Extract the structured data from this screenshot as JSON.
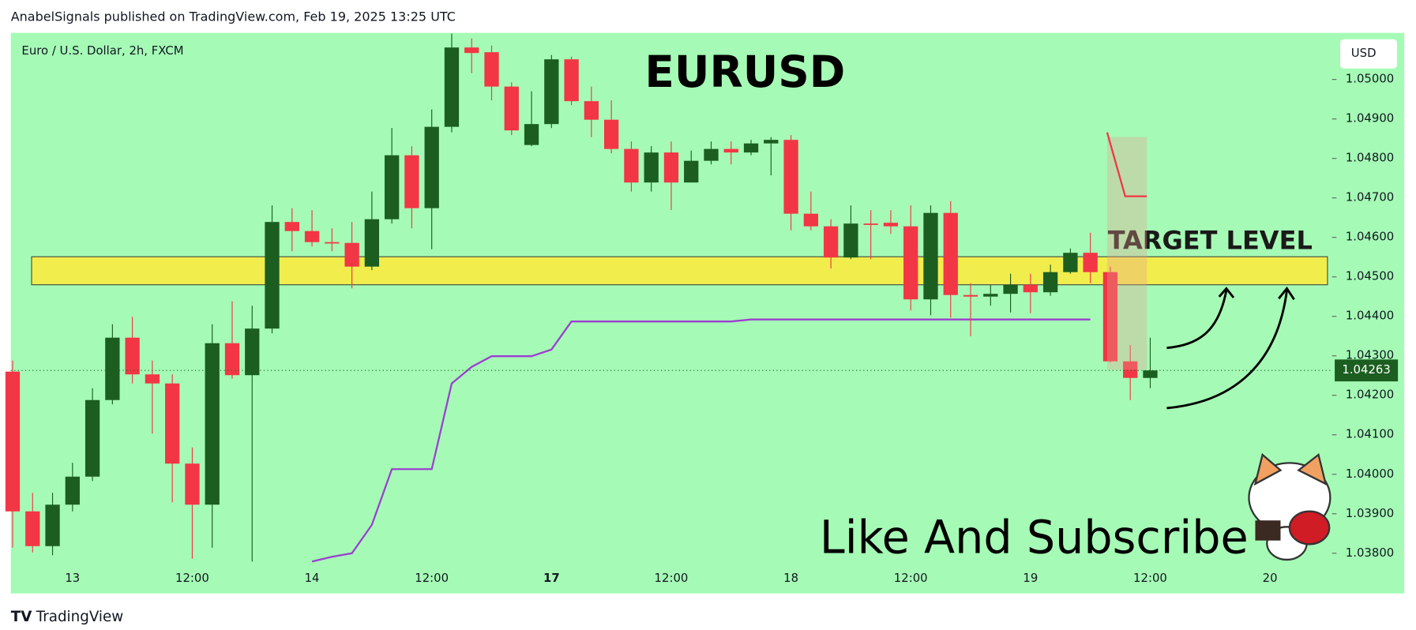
{
  "header": {
    "text": "AnabelSignals published on TradingView.com, Feb 19, 2025 13:25 UTC"
  },
  "footer": {
    "brand": "TradingView"
  },
  "chart_data": {
    "type": "candlestick",
    "title": "EURUSD",
    "subtitle": "Euro / U.S. Dollar, 2h, FXCM",
    "currency": "USD",
    "annotation": "Like And Subscribe",
    "up_color": "#1b5e20",
    "down_color": "#f23645",
    "background": "#a5fbb5",
    "categories": [
      null,
      null,
      null,
      "13",
      null,
      null,
      null,
      null,
      null,
      "12:00",
      null,
      null,
      null,
      null,
      null,
      "14",
      null,
      null,
      null,
      null,
      null,
      "12:00",
      null,
      null,
      null,
      null,
      null,
      "17",
      null,
      null,
      null,
      null,
      null,
      "12:00",
      null,
      null,
      null,
      null,
      null,
      "18",
      null,
      null,
      null,
      null,
      null,
      "12:00",
      null,
      null,
      null,
      null,
      null,
      "19",
      null,
      null,
      null,
      null,
      null,
      "12:00",
      null,
      null,
      null,
      null,
      null,
      "20"
    ],
    "open": [
      1.0426,
      1.03906,
      1.03818,
      1.03923,
      1.03994,
      1.04188,
      1.04346,
      1.04253,
      1.0423,
      1.04027,
      1.03923,
      1.04332,
      1.04251,
      1.04369,
      1.04639,
      1.04616,
      1.04588,
      1.04586,
      1.04526,
      1.04646,
      1.04808,
      1.04674,
      1.0488,
      1.05081,
      1.05069,
      1.04982,
      1.04834,
      1.04887,
      1.05051,
      1.04945,
      1.04898,
      1.04824,
      1.04739,
      1.04815,
      1.04739,
      1.04794,
      1.04824,
      1.04815,
      1.04838,
      1.04847,
      1.0466,
      1.04628,
      1.04549,
      1.04635,
      1.04637,
      1.04628,
      1.04443,
      1.04662,
      1.04454,
      1.0445,
      1.04457,
      1.0448,
      1.04461,
      1.04512,
      1.04561,
      1.04512,
      1.04286,
      1.04244,
      null,
      null,
      null,
      null,
      null,
      null
    ],
    "high": [
      1.04288,
      1.03953,
      1.03953,
      1.04029,
      1.04218,
      1.0438,
      1.04399,
      1.04288,
      1.04253,
      1.04068,
      1.0438,
      1.04438,
      1.04427,
      1.04681,
      1.04674,
      1.04669,
      1.04623,
      1.04639,
      1.04716,
      1.04877,
      1.04831,
      1.04924,
      1.05116,
      1.05104,
      1.05086,
      1.04993,
      1.0497,
      1.05062,
      1.05058,
      1.04982,
      1.04947,
      1.04843,
      1.04831,
      1.04843,
      1.0482,
      1.04843,
      1.04843,
      1.04847,
      1.04854,
      1.04859,
      1.04716,
      1.04646,
      1.04681,
      1.04669,
      1.04669,
      1.04681,
      1.04681,
      1.04692,
      1.04484,
      1.0448,
      1.04508,
      1.04508,
      1.04531,
      1.04572,
      1.04612,
      1.04526,
      1.04327,
      1.04346,
      null,
      null,
      null,
      null,
      null,
      null
    ],
    "low": [
      1.03814,
      1.03802,
      1.03795,
      1.03906,
      1.03983,
      1.04177,
      1.0423,
      1.04103,
      1.03929,
      1.03786,
      1.03814,
      1.04242,
      1.03779,
      1.04357,
      1.04565,
      1.04577,
      1.04565,
      1.04471,
      1.04517,
      1.04635,
      1.04623,
      1.0457,
      1.04866,
      1.05016,
      1.04947,
      1.04859,
      1.04831,
      1.04877,
      1.04935,
      1.04854,
      1.04813,
      1.04716,
      1.04716,
      1.04669,
      1.04739,
      1.04785,
      1.04785,
      1.04808,
      1.04757,
      1.04618,
      1.04618,
      1.04521,
      1.04545,
      1.04545,
      1.04609,
      1.04415,
      1.04403,
      1.04397,
      1.0435,
      1.04427,
      1.0441,
      1.04408,
      1.04452,
      1.04508,
      1.04484,
      1.04283,
      1.04188,
      1.04218,
      null,
      null,
      null,
      null,
      null,
      null
    ],
    "close": [
      1.03906,
      1.03818,
      1.03923,
      1.03994,
      1.04188,
      1.04346,
      1.04253,
      1.0423,
      1.04027,
      1.03923,
      1.04332,
      1.04251,
      1.04369,
      1.04639,
      1.04616,
      1.04588,
      1.04586,
      1.04526,
      1.04646,
      1.04808,
      1.04674,
      1.0488,
      1.05081,
      1.05067,
      1.04982,
      1.04871,
      1.04887,
      1.05051,
      1.04945,
      1.04898,
      1.04824,
      1.04739,
      1.04815,
      1.04739,
      1.04794,
      1.04824,
      1.04815,
      1.04838,
      1.04847,
      1.0466,
      1.04628,
      1.04549,
      1.04635,
      1.04632,
      1.04628,
      1.04443,
      1.04662,
      1.04454,
      1.0445,
      1.04457,
      1.0448,
      1.04461,
      1.04512,
      1.04561,
      1.04512,
      1.04286,
      1.04244,
      1.04263,
      null,
      null,
      null,
      null,
      null,
      null
    ],
    "indicator": {
      "color": "#9c3fd0",
      "values": [
        null,
        null,
        null,
        null,
        null,
        null,
        null,
        null,
        null,
        null,
        null,
        null,
        null,
        null,
        null,
        1.03779,
        1.03791,
        1.038,
        1.03872,
        1.04013,
        1.04013,
        1.04013,
        1.0423,
        1.04272,
        1.04299,
        1.04299,
        1.04299,
        1.04316,
        1.04387,
        1.04387,
        1.04387,
        1.04387,
        1.04387,
        1.04387,
        1.04387,
        1.04387,
        1.04387,
        1.04392,
        1.04392,
        1.04392,
        1.04392,
        1.04392,
        1.04392,
        1.04392,
        1.04392,
        1.04392,
        1.04392,
        1.04392,
        1.04392,
        1.04392,
        1.04392,
        1.04392,
        1.04392,
        1.04392,
        1.04392,
        null,
        null,
        null,
        null,
        null,
        null,
        null,
        null,
        null
      ]
    },
    "target_zone": {
      "label": "TARGET LEVEL",
      "low": 1.0448,
      "high": 1.04551,
      "color": "#ffeb3b"
    },
    "ylim": [
      1.03779,
      1.05118
    ],
    "yticks": [
      {
        "value": 1.038,
        "label": "1.03800"
      },
      {
        "value": 1.039,
        "label": "1.03900"
      },
      {
        "value": 1.04,
        "label": "1.04000"
      },
      {
        "value": 1.041,
        "label": "1.04100"
      },
      {
        "value": 1.042,
        "label": "1.04200"
      },
      {
        "value": 1.043,
        "label": "1.04300"
      },
      {
        "value": 1.044,
        "label": "1.04400"
      },
      {
        "value": 1.045,
        "label": "1.04500"
      },
      {
        "value": 1.046,
        "label": "1.04600"
      },
      {
        "value": 1.047,
        "label": "1.04700"
      },
      {
        "value": 1.048,
        "label": "1.04800"
      },
      {
        "value": 1.049,
        "label": "1.04900"
      },
      {
        "value": 1.05,
        "label": "1.05000"
      }
    ]
  }
}
